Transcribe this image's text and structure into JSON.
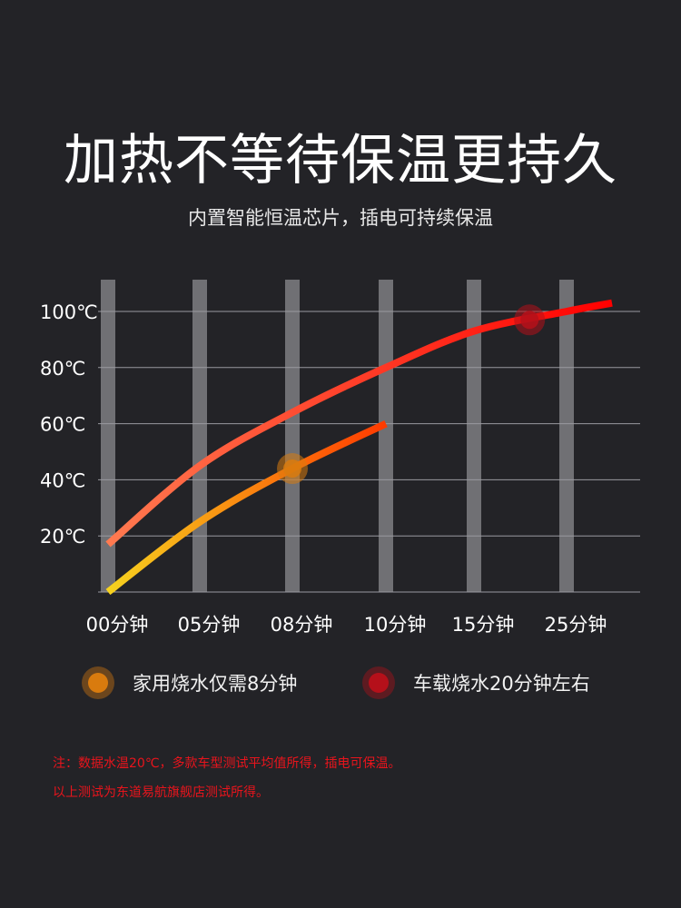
{
  "title": "加热不等待保温更持久",
  "subtitle": "内置智能恒温芯片，插电可持续保温",
  "chart_data": {
    "type": "line",
    "y_ticks": [
      {
        "value": 100,
        "label": "100℃"
      },
      {
        "value": 80,
        "label": "80℃"
      },
      {
        "value": 60,
        "label": "60℃"
      },
      {
        "value": 40,
        "label": "40℃"
      },
      {
        "value": 20,
        "label": "20℃"
      }
    ],
    "x_ticks": [
      "00分钟",
      "05分钟",
      "08分钟",
      "10分钟",
      "15分钟",
      "25分钟"
    ],
    "ylim": [
      0,
      110
    ],
    "series": [
      {
        "name": "家用烧水仅需8分钟",
        "color_start": "#f6d21f",
        "color_end": "#ff3a00",
        "points": [
          [
            0,
            0
          ],
          [
            1,
            25
          ],
          [
            2,
            44
          ],
          [
            3,
            60
          ]
        ],
        "marker": {
          "x": 2,
          "y": 44
        }
      },
      {
        "name": "车载烧水20分钟左右",
        "color_start": "#ff7a50",
        "color_end": "#ff0000",
        "points": [
          [
            0,
            17
          ],
          [
            1,
            45
          ],
          [
            2,
            64
          ],
          [
            3,
            80
          ],
          [
            4,
            93
          ],
          [
            5,
            100
          ],
          [
            5.5,
            103
          ]
        ],
        "marker": {
          "x": 4.6,
          "y": 97
        }
      }
    ]
  },
  "legend": {
    "home_label": "家用烧水仅需8分钟",
    "home_color": "#d97b0e",
    "car_label": "车载烧水20分钟左右",
    "car_color": "#b5101a"
  },
  "notes": {
    "line1": "注：数据水温20℃，多款车型测试平均值所得，插电可保温。",
    "line2": "以上测试为东道易航旗舰店测试所得。",
    "color": "#e8141c"
  }
}
